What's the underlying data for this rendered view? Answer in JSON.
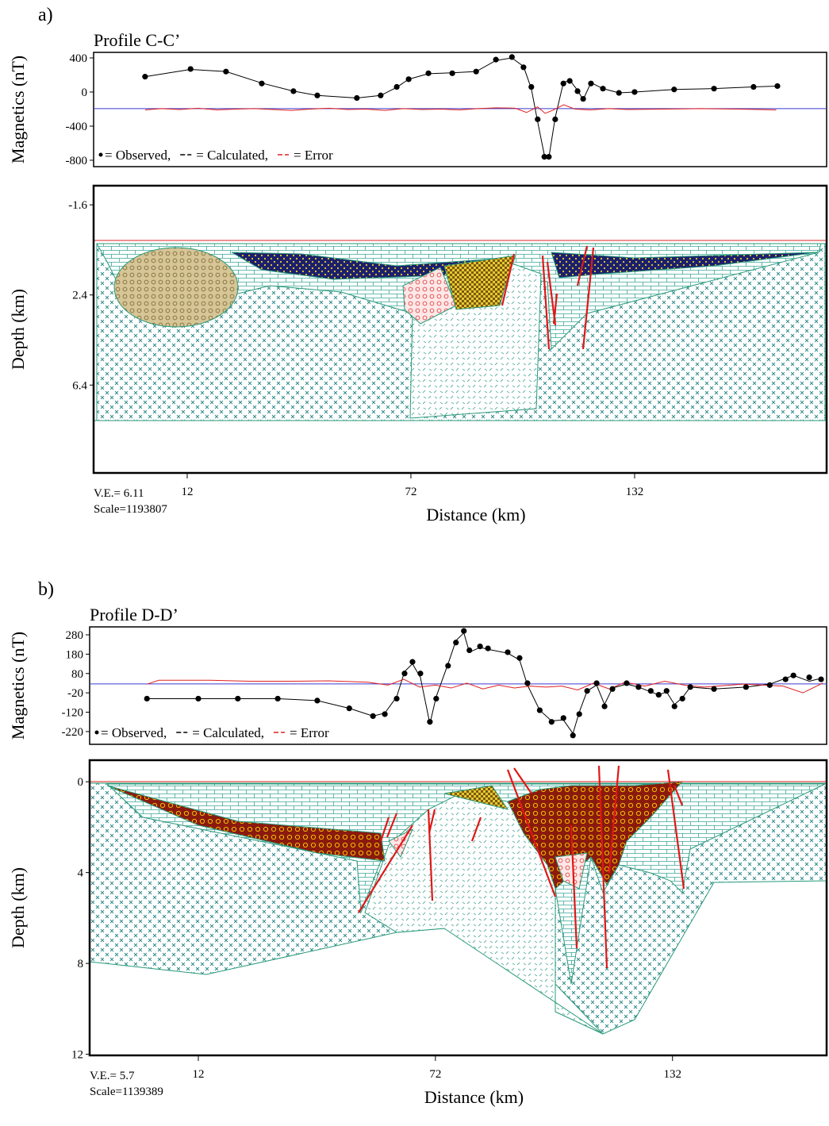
{
  "chart_data": [
    {
      "type": "line",
      "panel_label": "a)",
      "title": "Profile C-C’",
      "y_label": "Magnetics (nT)",
      "xlim": [
        -13.1,
        183.5
      ],
      "ylim": [
        -875,
        465
      ],
      "yticks": [
        400,
        0,
        -400,
        -800
      ],
      "baseline": -195,
      "baseline_color": "#3a3ad0",
      "series": [
        {
          "name": "= Observed,",
          "color": "#000000",
          "marker": "dot",
          "x": [
            0.7,
            12.9,
            22.4,
            32.0,
            40.5,
            46.9,
            57.5,
            63.9,
            68.2,
            71.4,
            76.7,
            83.1,
            89.5,
            94.8,
            99.1,
            102.2,
            104.3,
            106.0,
            107.8,
            109.0,
            110.7,
            112.9,
            114.6,
            116.7,
            118.2,
            120.3,
            123.5,
            127.8,
            132.0,
            142.6,
            153.3,
            163.9,
            170.3
          ],
          "values": [
            180,
            270,
            240,
            100,
            10,
            -40,
            -70,
            -40,
            60,
            150,
            220,
            220,
            240,
            380,
            410,
            290,
            60,
            -320,
            -760,
            -760,
            -320,
            100,
            130,
            10,
            -80,
            100,
            40,
            -10,
            0,
            30,
            40,
            60,
            70
          ]
        },
        {
          "name": "= Calculated,",
          "color": "#000000",
          "marker": "line",
          "x": [
            0.7,
            12.9,
            22.4,
            32.0,
            40.5,
            46.9,
            57.5,
            63.9,
            68.2,
            71.4,
            76.7,
            83.1,
            89.5,
            94.8,
            99.1,
            102.2,
            104.3,
            106.0,
            107.8,
            109.0,
            110.7,
            112.9,
            114.6,
            116.7,
            118.2,
            120.3,
            123.5,
            127.8,
            132.0,
            142.6,
            153.3,
            163.9,
            170.3
          ],
          "values": [
            180,
            265,
            240,
            105,
            10,
            -40,
            -70,
            -40,
            55,
            150,
            215,
            225,
            240,
            370,
            400,
            300,
            40,
            -350,
            -740,
            -770,
            -300,
            110,
            140,
            20,
            -90,
            110,
            40,
            -10,
            0,
            30,
            40,
            60,
            70
          ]
        },
        {
          "name": "= Error",
          "color": "#e02020",
          "marker": "line",
          "x": [
            0.7,
            5,
            10,
            15,
            20,
            25,
            30,
            35,
            40,
            45,
            50,
            55,
            60,
            65,
            70,
            75,
            80,
            85,
            90,
            95,
            100,
            103,
            106,
            108,
            110,
            113,
            116,
            120,
            125,
            130,
            140,
            150,
            160,
            170
          ],
          "values": [
            -210,
            -195,
            -205,
            -190,
            -210,
            -200,
            -195,
            -205,
            -215,
            -200,
            -190,
            -205,
            -200,
            -215,
            -195,
            -205,
            -200,
            -210,
            -195,
            -185,
            -190,
            -240,
            -175,
            -250,
            -215,
            -150,
            -200,
            -210,
            -195,
            -205,
            -200,
            -195,
            -200,
            -210
          ]
        }
      ]
    },
    {
      "type": "section",
      "y_label": "Depth (km)",
      "x_label": "Distance (km)",
      "xlim": [
        -13.1,
        183.5
      ],
      "xticks": [
        12,
        72,
        132
      ],
      "ylim": [
        10.3,
        -2.45
      ],
      "yticks": [
        -1.6,
        2.4,
        6.4
      ],
      "notes": [
        "V.E.= 6.11",
        "Scale=1193807"
      ]
    },
    {
      "type": "line",
      "panel_label": "b)",
      "title": "Profile D-D’",
      "y_label": "Magnetics (nT)",
      "xlim": [
        -15.5,
        171.0
      ],
      "ylim": [
        -286,
        321
      ],
      "yticks": [
        280,
        180,
        80,
        -20,
        -120,
        -220
      ],
      "baseline": 26,
      "baseline_color": "#3a3ad0",
      "series": [
        {
          "name": "= Observed,",
          "color": "#000000",
          "marker": "dot",
          "x": [
            -1.0,
            12.0,
            22.0,
            32.1,
            42.1,
            50.2,
            56.2,
            59.2,
            62.2,
            64.2,
            66.2,
            68.2,
            70.6,
            72.2,
            75.2,
            77.2,
            79.2,
            80.6,
            83.3,
            85.3,
            90.3,
            93.3,
            95.3,
            98.4,
            101.4,
            104.4,
            106.8,
            108.4,
            110.4,
            112.8,
            114.8,
            116.8,
            120.4,
            123.4,
            126.5,
            128.5,
            130.5,
            132.5,
            134.5,
            136.5,
            142.5,
            150.6,
            156.6,
            160.6,
            162.6,
            166.6,
            169.6
          ],
          "values": [
            -50,
            -50,
            -50,
            -50,
            -60,
            -100,
            -140,
            -130,
            -50,
            80,
            140,
            80,
            -170,
            -50,
            120,
            240,
            300,
            200,
            220,
            210,
            190,
            160,
            30,
            -110,
            -170,
            -150,
            -240,
            -130,
            -10,
            30,
            -90,
            0,
            30,
            10,
            -10,
            -30,
            -10,
            -90,
            -50,
            10,
            0,
            10,
            20,
            50,
            70,
            60,
            50
          ]
        },
        {
          "name": "= Calculated,",
          "color": "#000000",
          "marker": "line",
          "x": [
            -1.0,
            12.0,
            22.0,
            32.1,
            42.1,
            50.2,
            56.2,
            59.2,
            62.2,
            64.2,
            66.2,
            68.2,
            70.6,
            72.2,
            75.2,
            77.2,
            79.2,
            80.6,
            83.3,
            85.3,
            90.3,
            93.3,
            95.3,
            98.4,
            101.4,
            104.4,
            106.8,
            108.4,
            110.4,
            112.8,
            114.8,
            116.8,
            120.4,
            123.4,
            126.5,
            128.5,
            130.5,
            132.5,
            134.5,
            136.5,
            142.5,
            150.6,
            156.6,
            160.6,
            162.6,
            166.6,
            169.6
          ],
          "values": [
            -50,
            -50,
            -50,
            -50,
            -60,
            -100,
            -140,
            -125,
            -40,
            90,
            130,
            60,
            -180,
            -40,
            130,
            250,
            290,
            190,
            215,
            205,
            185,
            150,
            20,
            -110,
            -165,
            -160,
            -230,
            -120,
            -10,
            20,
            -80,
            5,
            25,
            10,
            -15,
            -30,
            -15,
            -80,
            -45,
            10,
            0,
            10,
            25,
            55,
            70,
            40,
            55
          ]
        },
        {
          "name": "= Error",
          "color": "#e02020",
          "marker": "line",
          "x": [
            -1,
            2,
            8,
            15,
            25,
            35,
            45,
            55,
            60,
            64,
            68,
            72,
            76,
            80,
            84,
            88,
            92,
            96,
            100,
            104,
            108,
            112,
            116,
            120,
            125,
            130,
            135,
            140,
            150,
            160,
            165,
            170
          ],
          "values": [
            25,
            45,
            45,
            45,
            40,
            40,
            42,
            35,
            20,
            50,
            10,
            20,
            5,
            30,
            0,
            20,
            5,
            15,
            10,
            15,
            -5,
            30,
            0,
            35,
            15,
            40,
            20,
            10,
            25,
            15,
            -20,
            30
          ]
        }
      ]
    },
    {
      "type": "section",
      "y_label": "Depth (km)",
      "x_label": "Distance (km)",
      "xlim": [
        -15.5,
        171.0
      ],
      "xticks": [
        12,
        72,
        132
      ],
      "ylim": [
        12.05,
        -0.95
      ],
      "yticks": [
        0,
        4,
        8,
        12
      ],
      "notes": [
        "V.E.= 5.7",
        "Scale=1139389"
      ]
    }
  ]
}
